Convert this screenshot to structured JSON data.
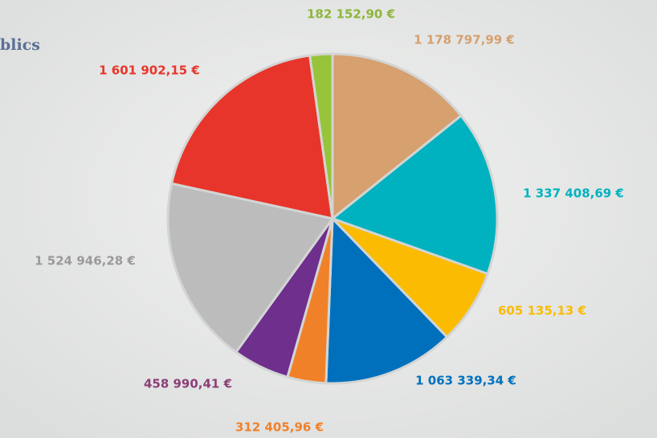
{
  "chart_data": {
    "type": "pie",
    "title": "blics",
    "categories": [
      null,
      null,
      null,
      null,
      null,
      null,
      null,
      null,
      null
    ],
    "values": [
      1178797.99,
      1337408.69,
      605135.13,
      1063339.34,
      312405.96,
      458990.41,
      1524946.28,
      1601902.15,
      182152.9
    ],
    "value_labels": [
      "1 178 797,99 €",
      "1 337 408,69 €",
      "605 135,13 €",
      "1 063 339,34 €",
      "312 405,96 €",
      "458 990,41 €",
      "1 524 946,28 €",
      "1 601 902,15 €",
      "182 152,90 €"
    ],
    "colors": [
      "#d6a06f",
      "#00b2bf",
      "#fbbb00",
      "#0070bd",
      "#f08129",
      "#6e2f8d",
      "#bcbcbc",
      "#e8352b",
      "#97c43a"
    ],
    "label_colors": [
      "#d6a06f",
      "#00b2bf",
      "#fbbb00",
      "#0070bd",
      "#f08129",
      "#8b3f78",
      "#9a9a9a",
      "#e8352b",
      "#8db63a"
    ]
  }
}
